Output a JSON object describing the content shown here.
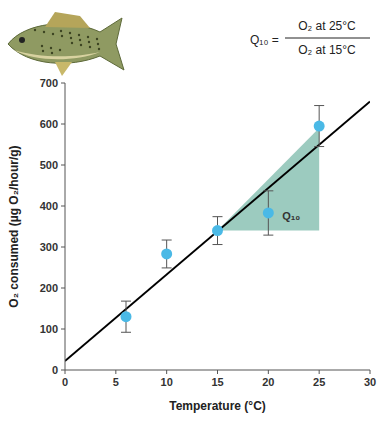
{
  "chart_data": {
    "type": "scatter",
    "formula": {
      "lhs": "Q₁₀ =",
      "numerator": "O₂ at 25°C",
      "denominator": "O₂ at 15°C"
    },
    "x_label": "Temperature (°C)",
    "y_label": "O₂ consumed (µg O₂/hour/g)",
    "xlim": [
      0,
      30
    ],
    "xticks": [
      0,
      5,
      10,
      15,
      20,
      25,
      30
    ],
    "ylim": [
      0,
      700
    ],
    "yticks": [
      0,
      100,
      200,
      300,
      400,
      500,
      600,
      700
    ],
    "grid": false,
    "series": [
      {
        "type": "scatter",
        "color": "#4ab9e6",
        "marker": "circle",
        "x": [
          6,
          10,
          15,
          20,
          25
        ],
        "values": [
          130,
          283,
          340,
          383,
          595
        ],
        "errors": [
          38,
          34,
          34,
          54,
          50
        ]
      },
      {
        "type": "line",
        "color": "#000000",
        "line_style": "solid",
        "x": [
          0,
          30
        ],
        "values": [
          22,
          655
        ]
      }
    ],
    "annotations": [
      {
        "text": "Q₁₀",
        "color": "#9ccbbf",
        "x": [
          15,
          25,
          25
        ],
        "y": [
          340,
          340,
          590
        ]
      }
    ]
  }
}
